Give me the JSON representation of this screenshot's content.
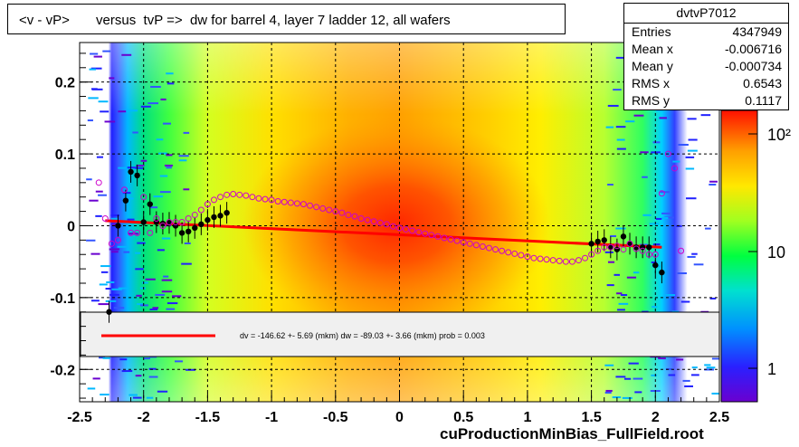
{
  "title": "<v - vP>       versus  tvP =>  dw for barrel 4, layer 7 ladder 12, all wafers",
  "stats": {
    "name": "dvtvP7012",
    "rows": [
      {
        "key": "Entries",
        "value": "4347949"
      },
      {
        "key": "Mean x",
        "value": "-0.006716"
      },
      {
        "key": "Mean y",
        "value": "-0.000734"
      },
      {
        "key": "RMS x",
        "value": "0.6543"
      },
      {
        "key": "RMS y",
        "value": "0.1117"
      }
    ]
  },
  "x_axis_title": "cuProductionMinBias_FullField.root",
  "fit_legend": "dv = -146.62 +-  5.69 (mkm) dw =  -89.03 +-  3.66 (mkm) prob = 0.003",
  "colors": {
    "fit_line": "#ff0000",
    "profile_marker": "#000000",
    "mean_marker": "#cc00cc",
    "grid": "#000000"
  },
  "chart_data": {
    "type": "heatmap",
    "title": "<v - vP>       versus  tvP =>  dw for barrel 4, layer 7 ladder 12, all wafers",
    "xlabel": "cuProductionMinBias_FullField.root",
    "ylabel": "",
    "xlim": [
      -2.5,
      2.5
    ],
    "ylim": [
      -0.245,
      0.255
    ],
    "x_ticks": [
      "-2.5",
      "-2",
      "-1.5",
      "-1",
      "-0.5",
      "0",
      "0.5",
      "1",
      "1.5",
      "2",
      "2.5"
    ],
    "y_ticks": [
      "-0.2",
      "-0.1",
      "0",
      "0.1",
      "0.2"
    ],
    "color_scale": {
      "type": "log",
      "ticks": [
        "1",
        "10",
        "10²"
      ]
    },
    "grid": true,
    "fit_line": {
      "x": [
        -2.3,
        2.05
      ],
      "y": [
        0.007,
        -0.03
      ]
    },
    "profile_points": {
      "x": [
        -2.27,
        -2.2,
        -2.14,
        -2.1,
        -2.05,
        -2.0,
        -1.95,
        -1.9,
        -1.85,
        -1.8,
        -1.75,
        -1.7,
        -1.65,
        -1.6,
        -1.55,
        -1.5,
        -1.45,
        -1.4,
        -1.35,
        1.5,
        1.55,
        1.6,
        1.65,
        1.7,
        1.75,
        1.8,
        1.85,
        1.9,
        1.95,
        2.0,
        2.05
      ],
      "y": [
        -0.12,
        0.0,
        0.035,
        0.075,
        0.07,
        0.005,
        0.03,
        0.005,
        0.003,
        0.004,
        0.0,
        -0.01,
        -0.008,
        -0.003,
        0.002,
        0.008,
        0.012,
        0.014,
        0.018,
        -0.025,
        -0.022,
        -0.02,
        -0.03,
        -0.033,
        -0.015,
        -0.025,
        -0.03,
        -0.03,
        -0.03,
        -0.055,
        -0.065
      ]
    },
    "mean_points": {
      "x": [
        -2.35,
        -2.3,
        -2.25,
        -2.2,
        -2.15,
        -2.1,
        -2.05,
        -2.0,
        -1.95,
        -1.9,
        -1.85,
        -1.8,
        -1.75,
        -1.7,
        -1.65,
        -1.6,
        -1.55,
        -1.5,
        -1.45,
        -1.4,
        -1.35,
        -1.3,
        -1.25,
        -1.2,
        -1.15,
        -1.1,
        -1.05,
        -1.0,
        -0.95,
        -0.9,
        -0.85,
        -0.8,
        -0.75,
        -0.7,
        -0.65,
        -0.6,
        -0.55,
        -0.5,
        -0.45,
        -0.4,
        -0.35,
        -0.3,
        -0.25,
        -0.2,
        -0.15,
        -0.1,
        -0.05,
        0.0,
        0.05,
        0.1,
        0.15,
        0.2,
        0.25,
        0.3,
        0.35,
        0.4,
        0.45,
        0.5,
        0.55,
        0.6,
        0.65,
        0.7,
        0.75,
        0.8,
        0.85,
        0.9,
        0.95,
        1.0,
        1.05,
        1.1,
        1.15,
        1.2,
        1.25,
        1.3,
        1.35,
        1.4,
        1.45,
        1.5,
        1.55,
        1.6,
        1.65,
        1.7,
        1.75,
        1.8,
        1.85,
        1.9,
        1.95,
        2.0,
        2.05,
        2.1,
        2.15,
        2.2
      ],
      "y": [
        0.06,
        0.01,
        -0.025,
        -0.02,
        0.05,
        -0.01,
        -0.01,
        0.04,
        -0.01,
        0.01,
        0.0,
        0.005,
        0.005,
        0.005,
        0.01,
        0.015,
        0.022,
        0.03,
        0.036,
        0.04,
        0.043,
        0.044,
        0.043,
        0.042,
        0.04,
        0.038,
        0.037,
        0.036,
        0.034,
        0.033,
        0.032,
        0.031,
        0.03,
        0.028,
        0.026,
        0.024,
        0.022,
        0.02,
        0.018,
        0.015,
        0.013,
        0.01,
        0.008,
        0.006,
        0.004,
        0.002,
        -0.001,
        -0.003,
        -0.005,
        -0.007,
        -0.009,
        -0.011,
        -0.013,
        -0.015,
        -0.017,
        -0.019,
        -0.021,
        -0.023,
        -0.025,
        -0.027,
        -0.029,
        -0.031,
        -0.033,
        -0.035,
        -0.037,
        -0.039,
        -0.041,
        -0.043,
        -0.045,
        -0.046,
        -0.047,
        -0.048,
        -0.049,
        -0.05,
        -0.05,
        -0.048,
        -0.045,
        -0.04,
        -0.035,
        -0.03,
        -0.03,
        -0.028,
        -0.033,
        -0.025,
        -0.032,
        -0.035,
        -0.04,
        -0.04,
        0.045,
        0.1,
        0.08,
        -0.035
      ]
    }
  }
}
